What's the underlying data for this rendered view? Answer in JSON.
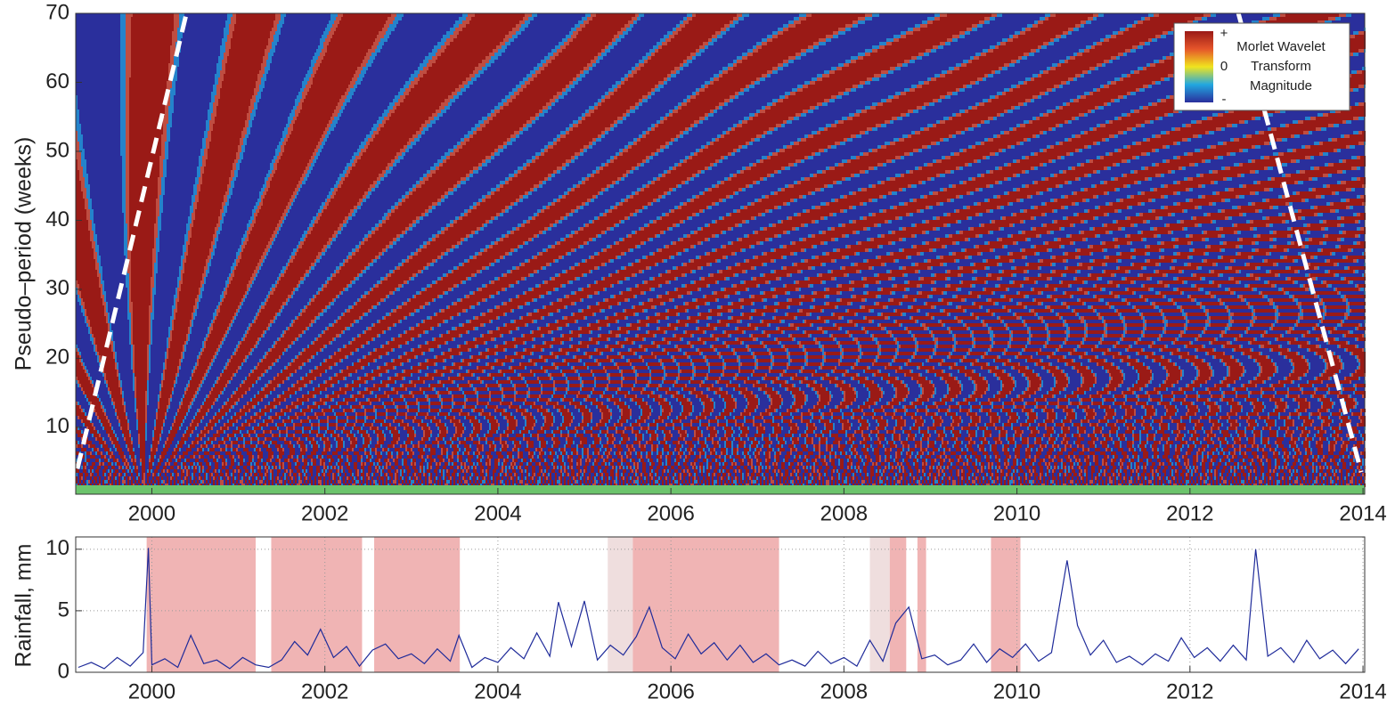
{
  "chart_data": [
    {
      "type": "heatmap",
      "ylabel": "Pseudo–period (weeks)",
      "xlim": [
        1999.12,
        2014.02
      ],
      "ylim": [
        0.3,
        70
      ],
      "xticks": [
        2000,
        2002,
        2004,
        2006,
        2008,
        2010,
        2012,
        2014
      ],
      "yticks": [
        10,
        20,
        30,
        40,
        50,
        60,
        70
      ],
      "colormap": [
        "#2a2f9c",
        "#22a7e0",
        "#f0e41e",
        "#e5552a",
        "#9a1a16"
      ],
      "colorbar": {
        "labels": [
          "+",
          "0",
          "-"
        ],
        "title": [
          "Morlet Wavelet",
          "Transform",
          "Magnitude"
        ]
      },
      "lines": [
        {
          "x": [
            1999.14,
            2000.4
          ],
          "y": [
            4,
            70
          ],
          "color": "#ffffff"
        },
        {
          "x": [
            2012.56,
            2013.98
          ],
          "y": [
            70,
            3.5
          ],
          "color": "#ffffff"
        }
      ]
    },
    {
      "type": "line",
      "ylabel": "Rainfall, mm",
      "xlim": [
        1999.12,
        2014.02
      ],
      "ylim": [
        0,
        11
      ],
      "xticks": [
        2000,
        2002,
        2004,
        2006,
        2008,
        2010,
        2012,
        2014
      ],
      "yticks": [
        0,
        5,
        10
      ],
      "grid": true,
      "color": "#1f2b9a",
      "spans": [
        {
          "start": 1999.94,
          "end": 2001.2,
          "color": "#f0b4b4"
        },
        {
          "start": 2001.38,
          "end": 2002.43,
          "color": "#f0b4b4"
        },
        {
          "start": 2002.57,
          "end": 2003.56,
          "color": "#f0b4b4"
        },
        {
          "start": 2005.27,
          "end": 2005.56,
          "color": "#efdede"
        },
        {
          "start": 2005.56,
          "end": 2007.25,
          "color": "#f0b4b4"
        },
        {
          "start": 2008.3,
          "end": 2008.53,
          "color": "#efdede"
        },
        {
          "start": 2008.53,
          "end": 2008.72,
          "color": "#f0b4b4"
        },
        {
          "start": 2008.85,
          "end": 2008.95,
          "color": "#f0b4b4"
        },
        {
          "start": 2009.7,
          "end": 2010.04,
          "color": "#f0b4b4"
        }
      ],
      "x": [
        1999.15,
        1999.3,
        1999.45,
        1999.6,
        1999.75,
        1999.9,
        1999.96,
        2000.0,
        2000.15,
        2000.3,
        2000.45,
        2000.6,
        2000.75,
        2000.9,
        2001.05,
        2001.2,
        2001.35,
        2001.5,
        2001.65,
        2001.8,
        2001.95,
        2002.1,
        2002.25,
        2002.4,
        2002.55,
        2002.7,
        2002.85,
        2003.0,
        2003.15,
        2003.3,
        2003.45,
        2003.55,
        2003.7,
        2003.85,
        2004.0,
        2004.15,
        2004.3,
        2004.45,
        2004.6,
        2004.7,
        2004.85,
        2005.0,
        2005.15,
        2005.3,
        2005.45,
        2005.6,
        2005.75,
        2005.9,
        2006.05,
        2006.2,
        2006.35,
        2006.5,
        2006.65,
        2006.8,
        2006.95,
        2007.1,
        2007.25,
        2007.4,
        2007.55,
        2007.7,
        2007.85,
        2008.0,
        2008.15,
        2008.3,
        2008.45,
        2008.6,
        2008.75,
        2008.9,
        2009.05,
        2009.2,
        2009.35,
        2009.5,
        2009.65,
        2009.8,
        2009.95,
        2010.1,
        2010.25,
        2010.4,
        2010.58,
        2010.7,
        2010.85,
        2011.0,
        2011.15,
        2011.3,
        2011.45,
        2011.6,
        2011.75,
        2011.9,
        2012.05,
        2012.2,
        2012.35,
        2012.5,
        2012.65,
        2012.76,
        2012.9,
        2013.05,
        2013.2,
        2013.35,
        2013.5,
        2013.65,
        2013.8,
        2013.95
      ],
      "values": [
        0.4,
        0.8,
        0.3,
        1.2,
        0.5,
        1.6,
        10.1,
        0.6,
        1.1,
        0.4,
        3.0,
        0.7,
        1.0,
        0.3,
        1.2,
        0.6,
        0.4,
        1.0,
        2.5,
        1.4,
        3.5,
        1.2,
        2.1,
        0.5,
        1.8,
        2.3,
        1.1,
        1.5,
        0.7,
        1.9,
        0.9,
        3.0,
        0.4,
        1.2,
        0.8,
        2.0,
        1.1,
        3.2,
        1.3,
        5.7,
        2.1,
        5.8,
        1.0,
        2.2,
        1.4,
        2.9,
        5.3,
        2.0,
        1.1,
        3.1,
        1.5,
        2.4,
        1.0,
        2.2,
        0.8,
        1.5,
        0.6,
        1.0,
        0.5,
        1.7,
        0.7,
        1.2,
        0.5,
        2.6,
        0.9,
        4.0,
        5.3,
        1.1,
        1.4,
        0.6,
        1.0,
        2.3,
        0.8,
        1.9,
        1.2,
        2.3,
        0.9,
        1.6,
        9.1,
        3.8,
        1.4,
        2.6,
        0.8,
        1.3,
        0.6,
        1.5,
        0.9,
        2.8,
        1.2,
        2.0,
        0.9,
        2.2,
        1.0,
        10.0,
        1.3,
        2.0,
        0.8,
        2.6,
        1.1,
        1.8,
        0.7,
        1.9
      ]
    }
  ]
}
